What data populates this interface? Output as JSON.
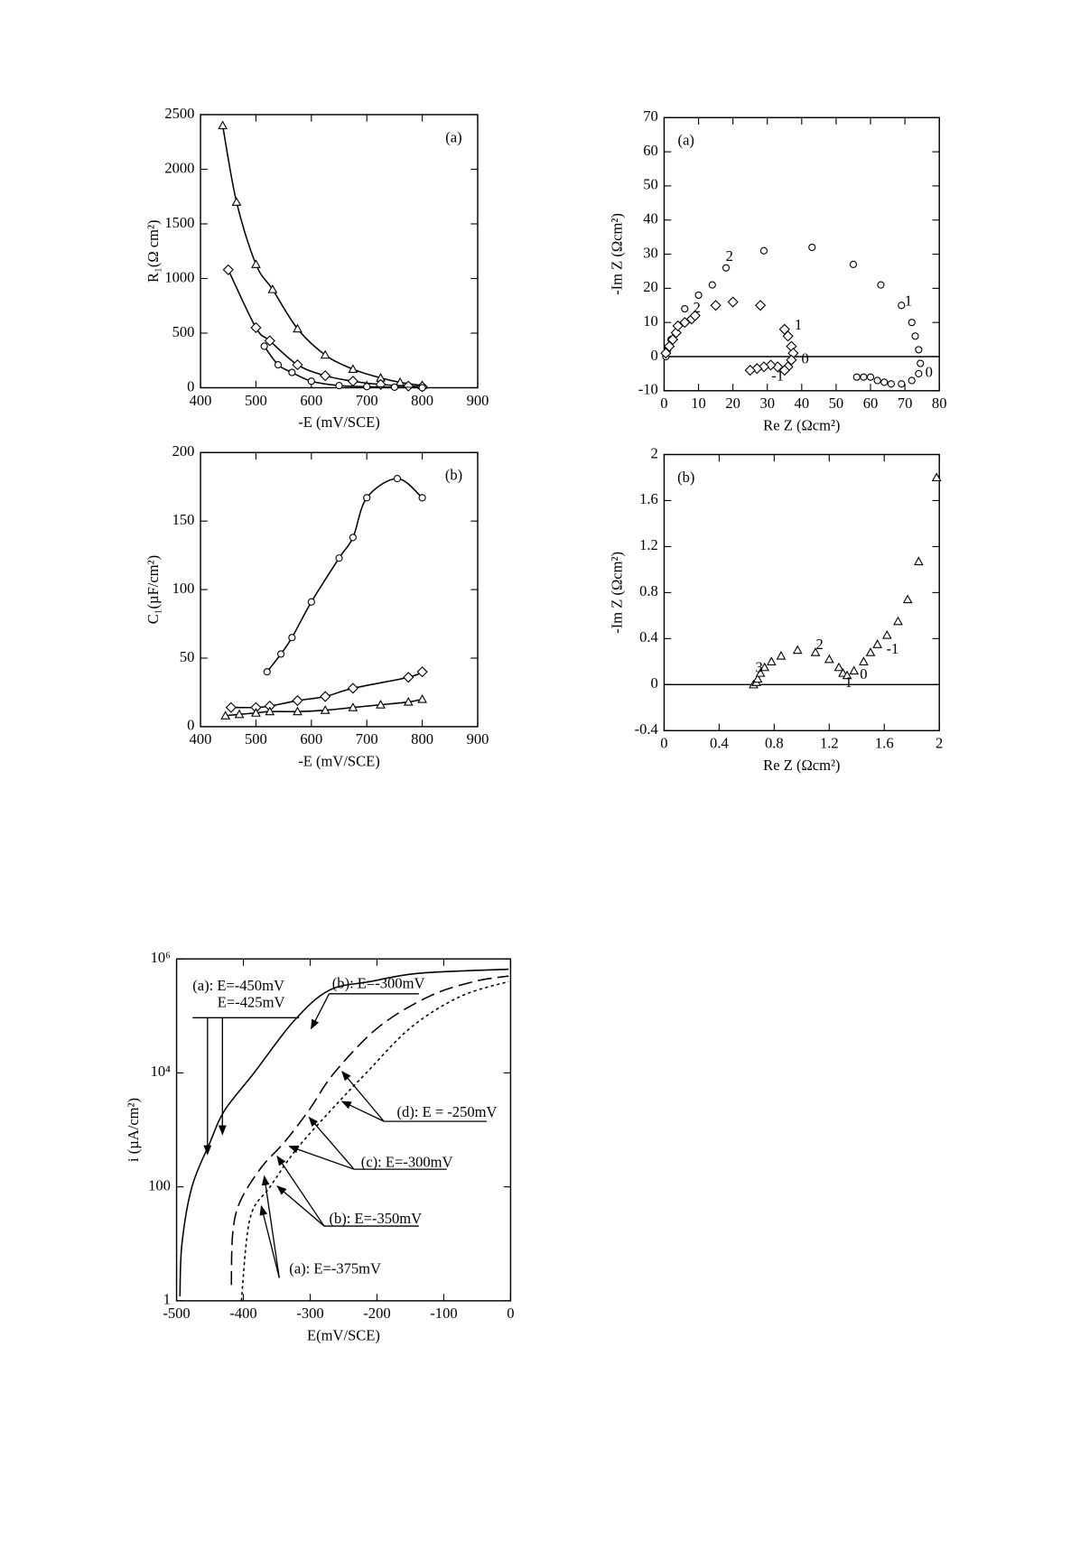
{
  "chart_data": [
    {
      "type": "line",
      "panel_label": "(a)",
      "x_label": "-E (mV/SCE)",
      "y_label": "R₁(Ω cm²)",
      "xlim": [
        400,
        900
      ],
      "xticks": [
        400,
        500,
        600,
        700,
        800,
        900
      ],
      "ylim": [
        0,
        2500
      ],
      "yticks": [
        0,
        500,
        1000,
        1500,
        2000,
        2500
      ],
      "series": [
        {
          "marker": "triangle",
          "color": "#000",
          "x": [
            440,
            465,
            500,
            530,
            575,
            625,
            675,
            725,
            760,
            800
          ],
          "values": [
            2400,
            1700,
            1130,
            900,
            540,
            300,
            170,
            90,
            50,
            20
          ]
        },
        {
          "marker": "diamond",
          "color": "#000",
          "x": [
            450,
            500,
            525,
            575,
            625,
            675,
            725,
            775,
            800
          ],
          "values": [
            1080,
            550,
            430,
            210,
            110,
            60,
            30,
            15,
            10
          ]
        },
        {
          "marker": "circle",
          "color": "#000",
          "x": [
            515,
            540,
            565,
            600,
            650,
            700,
            750,
            800
          ],
          "values": [
            380,
            210,
            140,
            60,
            20,
            10,
            5,
            0
          ]
        }
      ]
    },
    {
      "type": "scatter",
      "panel_label": "(a)",
      "x_label": "Re Z (Ωcm²)",
      "y_label": "-Im Z (Ωcm²)",
      "xlim": [
        0,
        80
      ],
      "xticks": [
        0,
        10,
        20,
        30,
        40,
        50,
        60,
        70,
        80
      ],
      "ylim": [
        -10,
        70
      ],
      "yticks": [
        -10,
        0,
        10,
        20,
        30,
        40,
        50,
        60,
        70
      ],
      "hline": 0,
      "series": [
        {
          "marker": "circle",
          "color": "#000",
          "x": [
            0.5,
            1,
            2,
            4,
            6,
            10,
            14,
            18,
            29,
            43,
            55,
            63,
            69,
            72,
            73,
            74,
            74.5,
            74,
            72,
            69,
            66,
            64,
            62,
            60,
            58,
            56
          ],
          "values": [
            0,
            2,
            5,
            9,
            14,
            18,
            21,
            26,
            31,
            32,
            27,
            21,
            15,
            10,
            6,
            2,
            -2,
            -5,
            -7,
            -8,
            -8,
            -7.5,
            -7,
            -6,
            -6,
            -6
          ]
        },
        {
          "marker": "diamond",
          "color": "#000",
          "x": [
            0.5,
            1.5,
            2.5,
            3.5,
            4,
            6,
            8,
            9,
            15,
            20,
            28,
            35,
            36,
            37,
            37.5,
            37,
            36,
            35,
            33,
            31,
            29,
            27,
            25
          ],
          "values": [
            1,
            3,
            5,
            7,
            9,
            10,
            11,
            12,
            15,
            16,
            15,
            8,
            6,
            3,
            1,
            -1,
            -3,
            -4,
            -3,
            -2.5,
            -3,
            -3.5,
            -4
          ]
        }
      ],
      "annotations": [
        {
          "text": "2",
          "x": 19,
          "y": 29
        },
        {
          "text": "1",
          "x": 71,
          "y": 16
        },
        {
          "text": "0",
          "x": 77,
          "y": -5
        },
        {
          "text": "2",
          "x": 9.5,
          "y": 14
        },
        {
          "text": "1",
          "x": 39,
          "y": 9
        },
        {
          "text": "0",
          "x": 41,
          "y": -1
        },
        {
          "text": "-1",
          "x": 33,
          "y": -6
        }
      ]
    },
    {
      "type": "line",
      "panel_label": "(b)",
      "x_label": "-E (mV/SCE)",
      "y_label": "C₁(µF/cm²)",
      "xlim": [
        400,
        900
      ],
      "xticks": [
        400,
        500,
        600,
        700,
        800,
        900
      ],
      "ylim": [
        0,
        200
      ],
      "yticks": [
        0,
        50,
        100,
        150,
        200
      ],
      "series": [
        {
          "marker": "circle",
          "color": "#000",
          "x": [
            520,
            545,
            565,
            600,
            650,
            675,
            700,
            755,
            800
          ],
          "values": [
            40,
            53,
            65,
            91,
            123,
            138,
            167,
            181,
            167
          ]
        },
        {
          "marker": "diamond",
          "color": "#000",
          "x": [
            455,
            500,
            525,
            575,
            625,
            675,
            775,
            800
          ],
          "values": [
            14,
            14,
            15,
            19,
            22,
            28,
            36,
            40
          ]
        },
        {
          "marker": "triangle",
          "color": "#000",
          "x": [
            445,
            470,
            500,
            525,
            575,
            625,
            675,
            725,
            775,
            800
          ],
          "values": [
            8,
            9,
            10,
            11,
            11,
            12,
            14,
            16,
            18,
            20
          ]
        }
      ]
    },
    {
      "type": "scatter",
      "panel_label": "(b)",
      "x_label": "Re Z (Ωcm²)",
      "y_label": "-Im Z (Ωcm²)",
      "xlim": [
        0,
        2
      ],
      "xticks": [
        0,
        0.4,
        0.8,
        1.2,
        1.6,
        2
      ],
      "ylim": [
        -0.4,
        2
      ],
      "yticks": [
        -0.4,
        0,
        0.4,
        0.8,
        1.2,
        1.6,
        2
      ],
      "hline": 0,
      "series": [
        {
          "marker": "triangle",
          "color": "#000",
          "x": [
            0.65,
            0.67,
            0.68,
            0.7,
            0.73,
            0.78,
            0.85,
            0.97,
            1.1,
            1.2,
            1.27,
            1.3,
            1.33,
            1.38,
            1.45,
            1.5,
            1.55,
            1.62,
            1.7,
            1.77,
            1.85,
            1.98
          ],
          "values": [
            0,
            0.02,
            0.05,
            0.1,
            0.15,
            0.2,
            0.25,
            0.3,
            0.28,
            0.22,
            0.15,
            0.1,
            0.08,
            0.12,
            0.2,
            0.28,
            0.35,
            0.43,
            0.55,
            0.74,
            1.07,
            1.8
          ]
        }
      ],
      "annotations": [
        {
          "text": "3",
          "x": 0.69,
          "y": 0.14
        },
        {
          "text": "2",
          "x": 1.13,
          "y": 0.34
        },
        {
          "text": "1",
          "x": 1.34,
          "y": 0.01
        },
        {
          "text": "0",
          "x": 1.45,
          "y": 0.08
        },
        {
          "text": "-1",
          "x": 1.66,
          "y": 0.3
        }
      ]
    },
    {
      "type": "line",
      "x_label": "E(mV/SCE)",
      "y_label": "i (µA/cm²)",
      "ylog": true,
      "xlim": [
        -500,
        0
      ],
      "xticks": [
        -500,
        -400,
        -300,
        -200,
        -100,
        0
      ],
      "ylim": [
        1,
        1000000
      ],
      "yticks": [
        1,
        100,
        {
          "value": 10000,
          "label": "10⁴"
        },
        {
          "value": 1000000,
          "label": "10⁶"
        }
      ],
      "series": [
        {
          "dash": "solid",
          "color": "#000",
          "x": [
            -495,
            -492,
            -477,
            -450,
            -428,
            -384,
            -325,
            -272,
            -210,
            -137,
            -3
          ],
          "values": [
            1.2,
            10,
            100,
            600,
            2200,
            10000,
            80000,
            280000,
            400000,
            560000,
            660000
          ]
        },
        {
          "dash": "dashed",
          "color": "#000",
          "x": [
            -418,
            -416,
            -405,
            -373,
            -339,
            -302,
            -264,
            -198,
            -122,
            -55,
            -3
          ],
          "values": [
            1.9,
            15,
            55,
            220,
            600,
            2200,
            10000,
            63000,
            220000,
            400000,
            500000
          ]
        },
        {
          "dash": "dotted",
          "color": "#000",
          "x": [
            -403,
            -390,
            -360,
            -321,
            -269,
            -216,
            -149,
            -75,
            -3
          ],
          "values": [
            1,
            28,
            100,
            450,
            2200,
            10000,
            63000,
            220000,
            400000
          ]
        }
      ],
      "annotations": [
        "(a): E=-450mV",
        "E=-425mV",
        "(b): E=-300mV",
        "(d): E = -250mV",
        "(c): E=-300mV",
        "(b): E=-350mV",
        "(a): E=-375mV"
      ]
    }
  ]
}
